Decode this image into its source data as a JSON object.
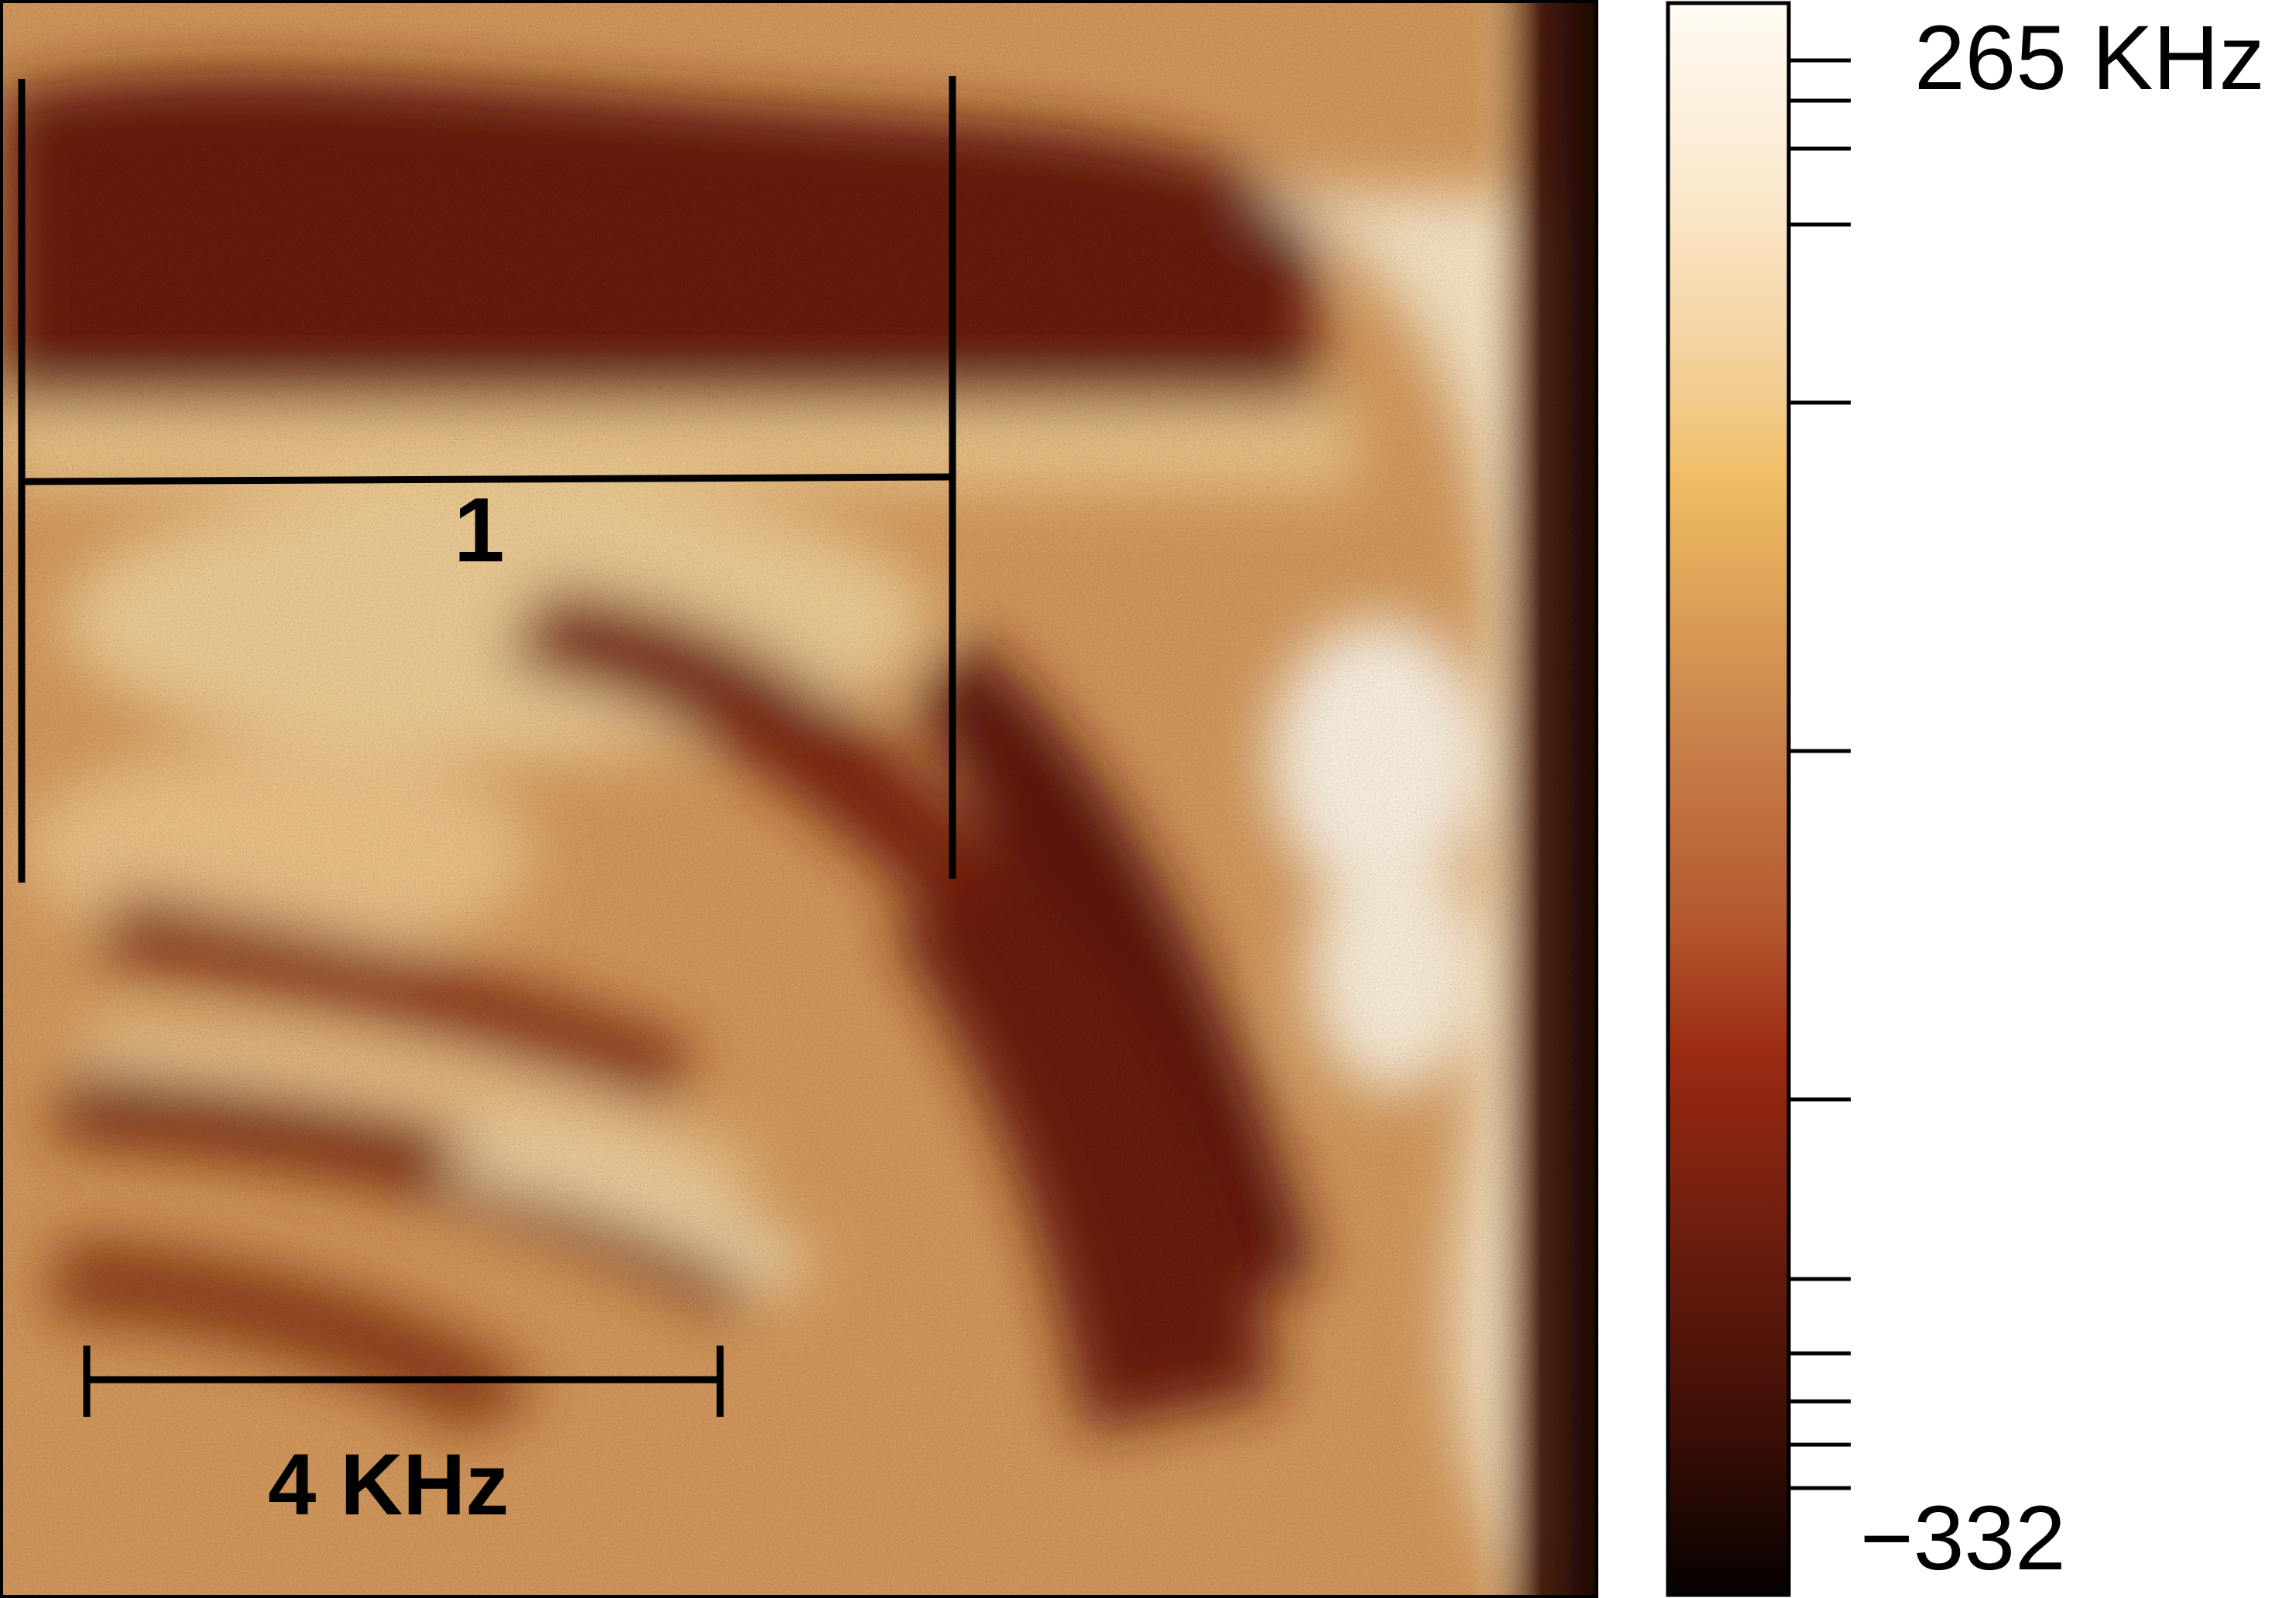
{
  "figure": {
    "region_label": "1",
    "scale_bar_label": "4 KHz"
  },
  "colorbar": {
    "max_label": "265 KHz",
    "min_label": "−332",
    "stops": [
      {
        "offset": 0.0,
        "color": "#fffbf4"
      },
      {
        "offset": 0.12,
        "color": "#fae8cc"
      },
      {
        "offset": 0.24,
        "color": "#f3cd94"
      },
      {
        "offset": 0.3,
        "color": "#efbd63"
      },
      {
        "offset": 0.46,
        "color": "#c8814a"
      },
      {
        "offset": 0.58,
        "color": "#b4572f"
      },
      {
        "offset": 0.66,
        "color": "#9b2a12"
      },
      {
        "offset": 0.78,
        "color": "#6b1d0e"
      },
      {
        "offset": 0.9,
        "color": "#3a0e06"
      },
      {
        "offset": 1.0,
        "color": "#060100"
      }
    ]
  },
  "map_colors": {
    "dark": "#5a1808",
    "mid": "#b4642f",
    "light": "#f4d9a8",
    "bright": "#fff6e6",
    "edge": "#2a0a03"
  }
}
